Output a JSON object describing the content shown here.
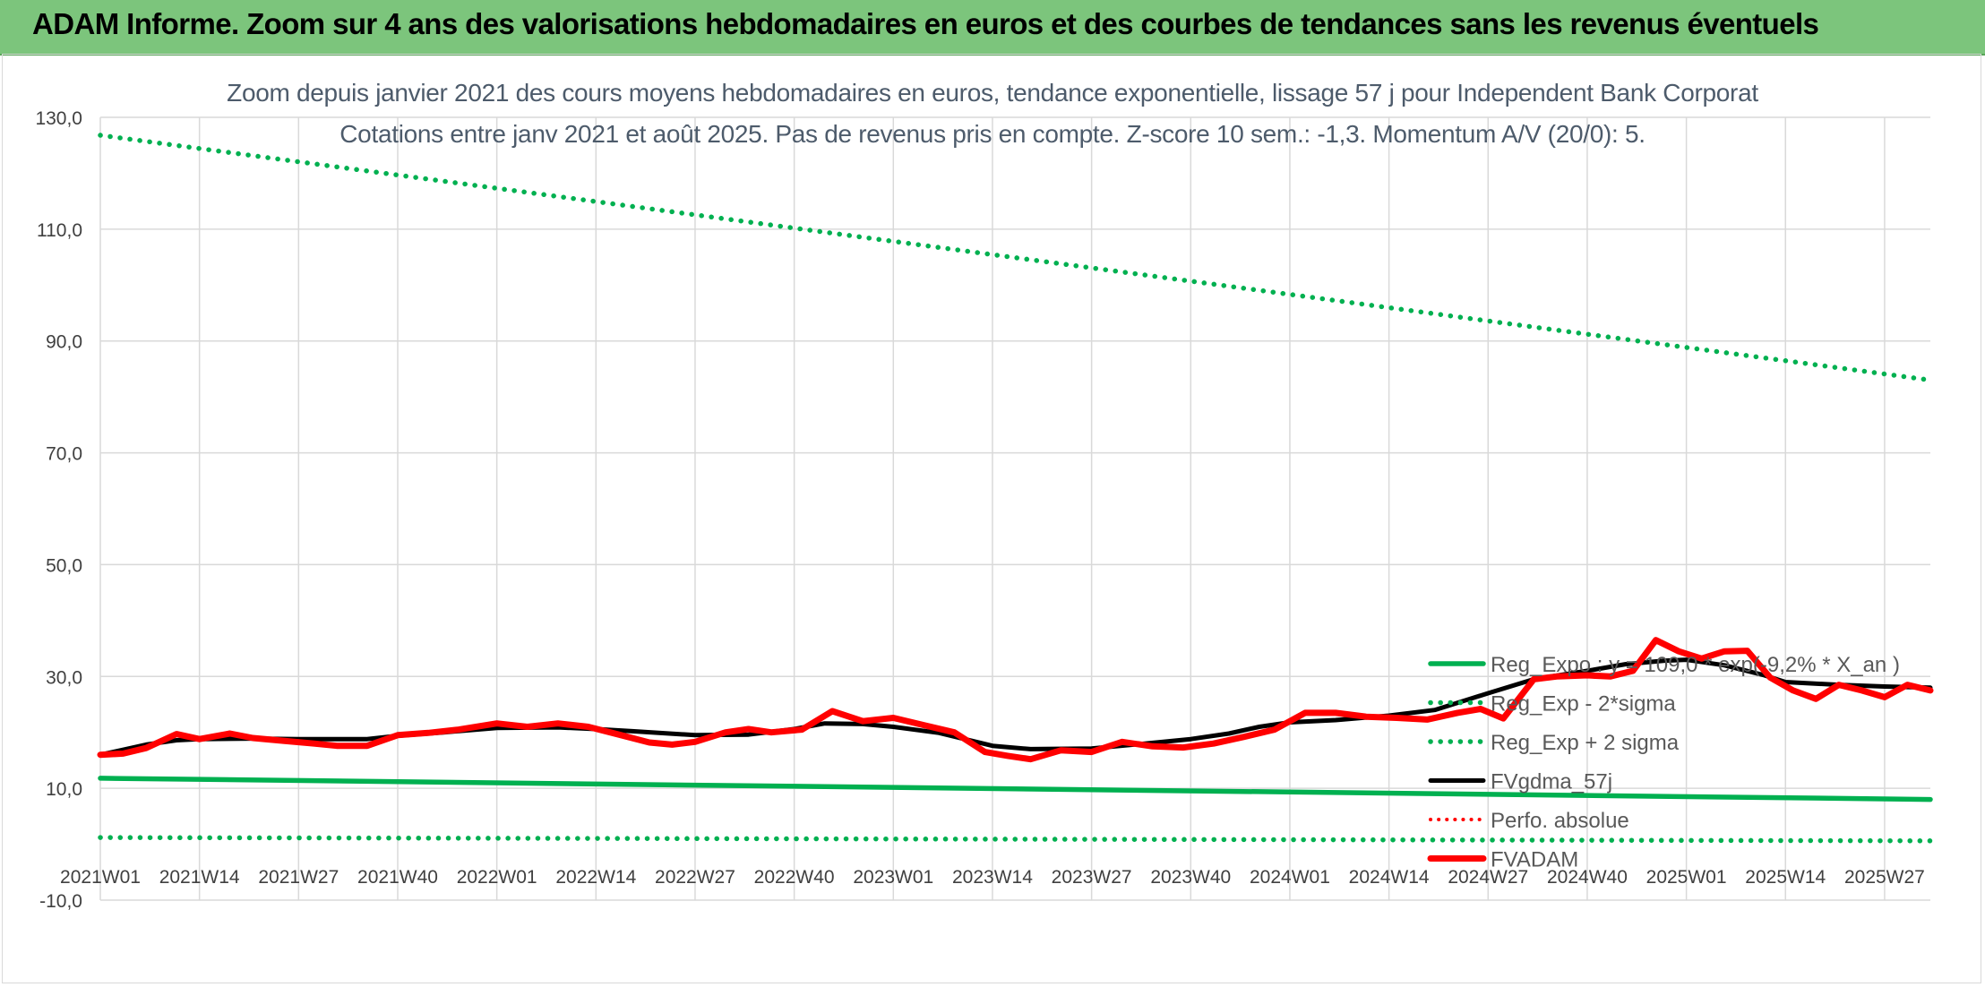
{
  "banner": {
    "title": "ADAM Informe. Zoom sur 4 ans des valorisations hebdomadaires en euros et des courbes de tendances sans les revenus éventuels"
  },
  "colors": {
    "banner_bg": "#7cc57c",
    "trend": "#00b050",
    "fvgdma": "#000000",
    "fvadam": "#ff0000",
    "perfo": "#ff0000",
    "grid": "#d9d9d9",
    "axis_text": "#404040"
  },
  "chart_data": {
    "type": "line",
    "title": "Zoom depuis janvier 2021 des cours moyens hebdomadaires en euros, tendance exponentielle, lissage 57 j pour Independent Bank Corporat",
    "subtitle": "Cotations entre janv 2021 et août 2025. Pas de revenus pris en compte. Z-score 10 sem.: -1,3. Momentum A/V (20/0): 5.",
    "ylim": [
      -10,
      130
    ],
    "ytick_labels": [
      "-10,0",
      "10,0",
      "30,0",
      "50,0",
      "70,0",
      "90,0",
      "110,0",
      "130,0"
    ],
    "ytick_values": [
      -10,
      10,
      30,
      50,
      70,
      90,
      110,
      130
    ],
    "x_tick_labels": [
      "2021W01",
      "2021W14",
      "2021W27",
      "2021W40",
      "2022W01",
      "2022W14",
      "2022W27",
      "2022W40",
      "2023W01",
      "2023W14",
      "2023W27",
      "2023W40",
      "2024W01",
      "2024W14",
      "2024W27",
      "2024W40",
      "2025W01",
      "2025W14",
      "2025W27"
    ],
    "x_tick_weeks": [
      0,
      13,
      26,
      39,
      52,
      65,
      78,
      91,
      104,
      117,
      130,
      143,
      156,
      169,
      182,
      195,
      208,
      221,
      234
    ],
    "grid": true,
    "legend_position": "bottom-right",
    "series": [
      {
        "name": "Reg_Expo : y = 109,0 * exp(-9,2% * X_an )",
        "style": "solid",
        "x": [
          0,
          240
        ],
        "y": [
          11.8,
          8.0
        ]
      },
      {
        "name": "Reg_Exp - 2*sigma",
        "style": "dotted",
        "x": [
          0,
          240
        ],
        "y": [
          1.2,
          0.6
        ]
      },
      {
        "name": "Reg_Exp + 2 sigma",
        "style": "dotted",
        "x": [
          0,
          240
        ],
        "y": [
          126.8,
          83.0
        ]
      },
      {
        "name": "FVgdma_57j",
        "style": "solid",
        "x": [
          0,
          6,
          10,
          13,
          20,
          26,
          35,
          39,
          45,
          52,
          60,
          65,
          70,
          78,
          85,
          91,
          95,
          100,
          104,
          110,
          117,
          122,
          130,
          137,
          143,
          148,
          152,
          156,
          162,
          169,
          175,
          182,
          188,
          195,
          200,
          205,
          208,
          213,
          218,
          221,
          228,
          234,
          240
        ],
        "y": [
          16.0,
          17.8,
          18.6,
          18.8,
          18.9,
          18.8,
          18.8,
          19.4,
          20.0,
          20.8,
          20.9,
          20.6,
          20.2,
          19.5,
          19.6,
          20.6,
          21.6,
          21.5,
          21.0,
          19.9,
          17.6,
          17.0,
          17.1,
          18.0,
          18.8,
          19.8,
          21.0,
          21.8,
          22.2,
          23.0,
          24.0,
          27.0,
          29.5,
          31.0,
          32.2,
          32.8,
          33.0,
          32.0,
          30.3,
          29.0,
          28.5,
          28.2,
          28.0
        ]
      },
      {
        "name": "Perfo. absolue",
        "style": "dotted",
        "x": [],
        "y": []
      },
      {
        "name": "FVADAM",
        "style": "solid",
        "x": [
          0,
          3,
          6,
          10,
          13,
          17,
          20,
          24,
          28,
          31,
          35,
          39,
          43,
          47,
          52,
          56,
          60,
          64,
          68,
          72,
          75,
          78,
          82,
          85,
          88,
          92,
          96,
          100,
          104,
          108,
          112,
          116,
          119,
          122,
          126,
          130,
          134,
          138,
          142,
          146,
          150,
          154,
          158,
          162,
          166,
          170,
          174,
          178,
          181,
          184,
          188,
          191,
          195,
          198,
          201,
          204,
          207,
          210,
          213,
          216,
          219,
          222,
          225,
          228,
          231,
          234,
          237,
          240
        ],
        "y": [
          16.0,
          16.2,
          17.2,
          19.7,
          18.8,
          19.8,
          19.0,
          18.5,
          18.0,
          17.6,
          17.6,
          19.5,
          19.9,
          20.5,
          21.6,
          21.0,
          21.6,
          21.0,
          19.6,
          18.2,
          17.8,
          18.3,
          20.0,
          20.6,
          20.0,
          20.5,
          23.8,
          22.0,
          22.6,
          21.3,
          20.0,
          16.5,
          15.8,
          15.2,
          16.8,
          16.5,
          18.3,
          17.5,
          17.3,
          18.0,
          19.2,
          20.5,
          23.5,
          23.5,
          22.8,
          22.6,
          22.3,
          23.5,
          24.2,
          22.5,
          29.5,
          30.0,
          30.2,
          30.0,
          31.0,
          36.5,
          34.5,
          33.2,
          34.5,
          34.6,
          29.8,
          27.5,
          26.0,
          28.5,
          27.5,
          26.3,
          28.5,
          27.5
        ]
      }
    ]
  }
}
